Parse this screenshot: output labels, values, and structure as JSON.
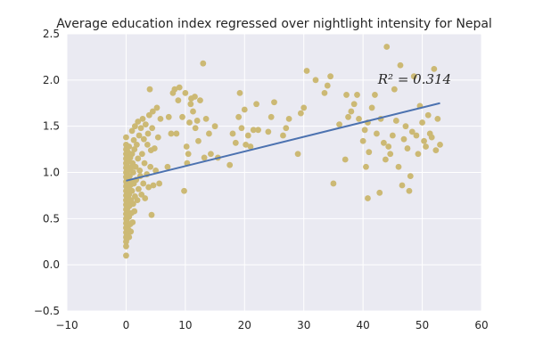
{
  "chart_data": {
    "type": "scatter",
    "title": "Average education index regressed over nightlight intensity for Nepal",
    "xlabel": "",
    "ylabel": "",
    "xlim": [
      -10,
      60
    ],
    "ylim": [
      -0.5,
      2.5
    ],
    "x_ticks": [
      "−10",
      "0",
      "10",
      "20",
      "30",
      "40",
      "50",
      "60"
    ],
    "y_ticks": [
      "−0.5",
      "0.0",
      "0.5",
      "1.0",
      "1.5",
      "2.0",
      "2.5"
    ],
    "grid": true,
    "annotation": "R² = 0.314",
    "colors": {
      "points": "#CCB974",
      "line": "#4C72B0",
      "background": "#EAEAF2",
      "grid": "#FFFFFF"
    },
    "series": [
      {
        "type": "scatter",
        "points": [
          [
            0.0,
            0.1
          ],
          [
            0.0,
            0.2
          ],
          [
            0.0,
            0.25
          ],
          [
            0.0,
            0.3
          ],
          [
            0.0,
            0.35
          ],
          [
            0.0,
            0.4
          ],
          [
            0.0,
            0.45
          ],
          [
            0.0,
            0.5
          ],
          [
            0.0,
            0.55
          ],
          [
            0.0,
            0.6
          ],
          [
            0.0,
            0.65
          ],
          [
            0.0,
            0.7
          ],
          [
            0.0,
            0.75
          ],
          [
            0.0,
            0.8
          ],
          [
            0.0,
            0.85
          ],
          [
            0.0,
            0.9
          ],
          [
            0.0,
            0.95
          ],
          [
            0.0,
            1.0
          ],
          [
            0.0,
            1.05
          ],
          [
            0.0,
            1.1
          ],
          [
            0.0,
            1.15
          ],
          [
            0.0,
            1.2
          ],
          [
            0.0,
            1.25
          ],
          [
            0.0,
            1.3
          ],
          [
            0.0,
            1.38
          ],
          [
            0.1,
            0.28
          ],
          [
            0.1,
            0.48
          ],
          [
            0.1,
            0.68
          ],
          [
            0.1,
            0.88
          ],
          [
            0.1,
            1.08
          ],
          [
            0.2,
            0.33
          ],
          [
            0.2,
            0.58
          ],
          [
            0.2,
            0.78
          ],
          [
            0.2,
            0.98
          ],
          [
            0.2,
            1.18
          ],
          [
            0.3,
            0.42
          ],
          [
            0.3,
            0.62
          ],
          [
            0.3,
            0.82
          ],
          [
            0.3,
            1.02
          ],
          [
            0.3,
            1.22
          ],
          [
            0.4,
            0.38
          ],
          [
            0.4,
            0.72
          ],
          [
            0.4,
            0.92
          ],
          [
            0.4,
            1.12
          ],
          [
            0.5,
            0.3
          ],
          [
            0.5,
            0.52
          ],
          [
            0.5,
            0.76
          ],
          [
            0.5,
            1.28
          ],
          [
            0.6,
            0.64
          ],
          [
            0.6,
            0.96
          ],
          [
            0.7,
            0.44
          ],
          [
            0.7,
            0.86
          ],
          [
            0.7,
            1.16
          ],
          [
            0.8,
            0.36
          ],
          [
            0.8,
            0.7
          ],
          [
            0.8,
            1.05
          ],
          [
            0.9,
            0.56
          ],
          [
            0.9,
            0.9
          ],
          [
            1.0,
            0.8
          ],
          [
            1.0,
            1.2
          ],
          [
            1.0,
            1.45
          ],
          [
            1.1,
            0.46
          ],
          [
            1.1,
            1.1
          ],
          [
            1.2,
            0.66
          ],
          [
            1.2,
            1.0
          ],
          [
            1.3,
            0.88
          ],
          [
            1.3,
            1.35
          ],
          [
            1.4,
            0.58
          ],
          [
            1.4,
            1.25
          ],
          [
            1.5,
            0.74
          ],
          [
            1.5,
            1.5
          ],
          [
            1.6,
            1.06
          ],
          [
            1.7,
            0.92
          ],
          [
            1.8,
            1.3
          ],
          [
            1.9,
            0.7
          ],
          [
            2.0,
            1.15
          ],
          [
            2.0,
            1.55
          ],
          [
            2.1,
            0.82
          ],
          [
            2.2,
            1.4
          ],
          [
            2.3,
            1.02
          ],
          [
            2.4,
            0.96
          ],
          [
            2.5,
            1.48
          ],
          [
            2.6,
            0.76
          ],
          [
            2.7,
            1.2
          ],
          [
            2.8,
            1.58
          ],
          [
            2.9,
            0.88
          ],
          [
            3.0,
            1.36
          ],
          [
            3.1,
            1.1
          ],
          [
            3.2,
            0.72
          ],
          [
            3.3,
            1.52
          ],
          [
            3.5,
            0.98
          ],
          [
            3.6,
            1.3
          ],
          [
            3.7,
            1.42
          ],
          [
            3.8,
            0.84
          ],
          [
            3.9,
            1.62
          ],
          [
            4.0,
            1.9
          ],
          [
            4.1,
            1.06
          ],
          [
            4.2,
            1.24
          ],
          [
            4.3,
            0.54
          ],
          [
            4.4,
            1.48
          ],
          [
            4.5,
            1.66
          ],
          [
            4.6,
            0.86
          ],
          [
            4.8,
            1.26
          ],
          [
            5.0,
            1.02
          ],
          [
            5.2,
            1.7
          ],
          [
            5.4,
            1.38
          ],
          [
            5.6,
            0.88
          ],
          [
            5.8,
            1.58
          ],
          [
            7.0,
            1.06
          ],
          [
            7.2,
            1.6
          ],
          [
            7.6,
            1.42
          ],
          [
            7.9,
            1.86
          ],
          [
            8.2,
            1.9
          ],
          [
            8.5,
            1.42
          ],
          [
            8.8,
            1.78
          ],
          [
            9.0,
            1.92
          ],
          [
            9.5,
            1.6
          ],
          [
            9.8,
            0.8
          ],
          [
            10.0,
            1.86
          ],
          [
            10.2,
            1.28
          ],
          [
            10.3,
            1.1
          ],
          [
            10.5,
            1.2
          ],
          [
            10.7,
            1.54
          ],
          [
            10.9,
            1.74
          ],
          [
            11.0,
            1.8
          ],
          [
            11.3,
            1.66
          ],
          [
            11.6,
            1.82
          ],
          [
            11.7,
            1.48
          ],
          [
            12.0,
            1.56
          ],
          [
            12.2,
            1.34
          ],
          [
            12.5,
            1.78
          ],
          [
            13.0,
            2.18
          ],
          [
            13.2,
            1.16
          ],
          [
            13.5,
            1.58
          ],
          [
            14.0,
            1.42
          ],
          [
            14.3,
            1.2
          ],
          [
            15.0,
            1.5
          ],
          [
            15.5,
            1.16
          ],
          [
            17.5,
            1.08
          ],
          [
            18.0,
            1.42
          ],
          [
            18.5,
            1.32
          ],
          [
            19.0,
            1.6
          ],
          [
            19.2,
            1.86
          ],
          [
            19.5,
            1.48
          ],
          [
            20.0,
            1.68
          ],
          [
            20.2,
            1.3
          ],
          [
            20.6,
            1.4
          ],
          [
            21.0,
            1.28
          ],
          [
            21.5,
            1.46
          ],
          [
            22.0,
            1.74
          ],
          [
            22.3,
            1.46
          ],
          [
            24.0,
            1.44
          ],
          [
            24.5,
            1.6
          ],
          [
            25.0,
            1.76
          ],
          [
            26.5,
            1.4
          ],
          [
            27.0,
            1.48
          ],
          [
            27.5,
            1.58
          ],
          [
            29.0,
            1.2
          ],
          [
            29.5,
            1.64
          ],
          [
            30.0,
            1.7
          ],
          [
            30.5,
            2.1
          ],
          [
            32.0,
            2.0
          ],
          [
            33.5,
            1.86
          ],
          [
            34.0,
            1.94
          ],
          [
            34.5,
            2.04
          ],
          [
            35.0,
            0.88
          ],
          [
            36.0,
            1.52
          ],
          [
            37.0,
            1.14
          ],
          [
            37.2,
            1.84
          ],
          [
            37.5,
            1.6
          ],
          [
            38.0,
            1.66
          ],
          [
            38.5,
            1.74
          ],
          [
            39.0,
            1.84
          ],
          [
            39.3,
            1.58
          ],
          [
            40.0,
            1.34
          ],
          [
            40.3,
            1.46
          ],
          [
            40.5,
            1.06
          ],
          [
            40.8,
            1.54
          ],
          [
            41.0,
            1.22
          ],
          [
            41.5,
            1.7
          ],
          [
            42.0,
            1.84
          ],
          [
            42.3,
            1.42
          ],
          [
            42.8,
            0.78
          ],
          [
            43.0,
            1.58
          ],
          [
            43.5,
            1.32
          ],
          [
            44.0,
            2.36
          ],
          [
            44.3,
            1.28
          ],
          [
            44.6,
            1.2
          ],
          [
            45.0,
            1.4
          ],
          [
            45.3,
            1.9
          ],
          [
            45.6,
            1.56
          ],
          [
            46.0,
            1.06
          ],
          [
            46.3,
            2.16
          ],
          [
            46.6,
            0.86
          ],
          [
            46.9,
            1.36
          ],
          [
            47.2,
            1.5
          ],
          [
            47.5,
            1.26
          ],
          [
            47.8,
            0.8
          ],
          [
            48.0,
            0.96
          ],
          [
            48.3,
            1.44
          ],
          [
            48.6,
            2.04
          ],
          [
            49.0,
            1.4
          ],
          [
            49.3,
            1.2
          ],
          [
            49.6,
            1.72
          ],
          [
            50.0,
            1.54
          ],
          [
            50.3,
            1.34
          ],
          [
            50.6,
            1.28
          ],
          [
            51.0,
            1.62
          ],
          [
            51.3,
            1.42
          ],
          [
            51.6,
            1.38
          ],
          [
            52.0,
            2.12
          ],
          [
            52.3,
            1.24
          ],
          [
            52.6,
            1.58
          ],
          [
            53.0,
            1.3
          ],
          [
            40.8,
            0.72
          ],
          [
            43.8,
            1.14
          ]
        ]
      },
      {
        "type": "line",
        "points": [
          [
            0.0,
            0.91
          ],
          [
            53.0,
            1.75
          ]
        ]
      }
    ]
  }
}
